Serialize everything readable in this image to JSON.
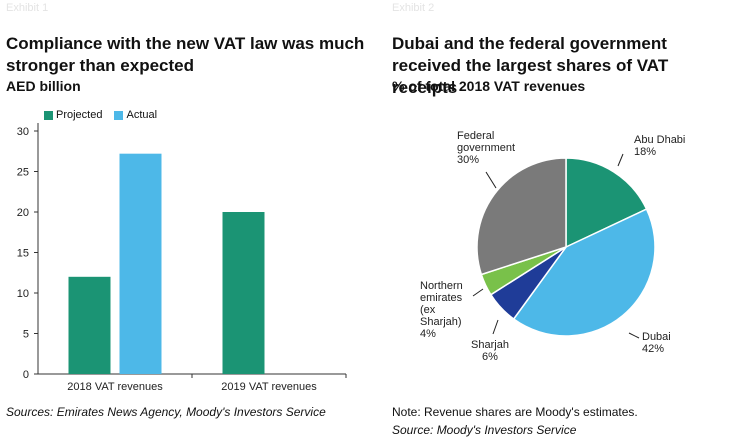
{
  "left": {
    "exhibit": "Exhibit 1",
    "title": "Compliance with the new VAT law was much stronger than expected",
    "subtitle": "AED billion",
    "source": "Sources: Emirates News Agency, Moody's Investors Service"
  },
  "right": {
    "exhibit": "Exhibit 2",
    "title": "Dubai and the federal government received the largest shares of VAT receipts",
    "subtitle": "% of total 2018 VAT revenues",
    "note": "Note: Revenue shares are Moody's estimates.",
    "source": "Source: Moody's Investors Service"
  },
  "chart_data": [
    {
      "type": "bar",
      "title": "Compliance with the new VAT law was much stronger than expected",
      "ylabel": "AED billion",
      "categories": [
        "2018 VAT revenues",
        "2019 VAT revenues"
      ],
      "series": [
        {
          "name": "Projected",
          "color": "#1b9474",
          "values": [
            12,
            20
          ]
        },
        {
          "name": "Actual",
          "color": "#4db8e8",
          "values": [
            27.2,
            null
          ]
        }
      ],
      "ylim": [
        0,
        30
      ],
      "yticks": [
        0,
        5,
        10,
        15,
        20,
        25,
        30
      ],
      "legend": "top-left"
    },
    {
      "type": "pie",
      "title": "Dubai and the federal government received the largest shares of VAT receipts",
      "slices": [
        {
          "label": "Abu Dhabi",
          "value": 18,
          "pct_label": "18%",
          "color": "#1b9474"
        },
        {
          "label": "Dubai",
          "value": 42,
          "pct_label": "42%",
          "color": "#4db8e8"
        },
        {
          "label": "Sharjah",
          "value": 6,
          "pct_label": "6%",
          "color": "#1f3c98"
        },
        {
          "label": "Northern emirates (ex Sharjah)",
          "value": 4,
          "pct_label": "4%",
          "color": "#79c14a"
        },
        {
          "label": "Federal government",
          "value": 30,
          "pct_label": "30%",
          "color": "#7a7a7a"
        }
      ]
    }
  ]
}
